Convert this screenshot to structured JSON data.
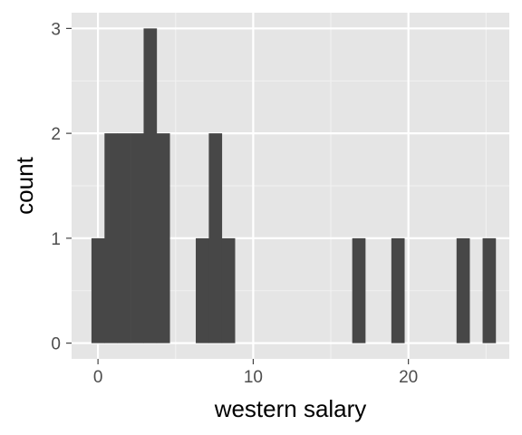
{
  "chart_data": {
    "type": "bar",
    "xlabel": "western salary",
    "ylabel": "count",
    "xlim": [
      -1.7,
      26.5
    ],
    "ylim": [
      -0.15,
      3.15
    ],
    "bin_width": 0.84,
    "x_ticks": [
      0,
      10,
      20
    ],
    "x_tick_labels": [
      "0",
      "10",
      "20"
    ],
    "y_ticks": [
      0,
      1,
      2,
      3
    ],
    "y_tick_labels": [
      "0",
      "1",
      "2",
      "3"
    ],
    "grid": true,
    "bins": [
      {
        "x": 0.0,
        "count": 1
      },
      {
        "x": 0.84,
        "count": 2
      },
      {
        "x": 1.68,
        "count": 2
      },
      {
        "x": 2.52,
        "count": 2
      },
      {
        "x": 3.36,
        "count": 3
      },
      {
        "x": 4.2,
        "count": 2
      },
      {
        "x": 6.72,
        "count": 1
      },
      {
        "x": 7.56,
        "count": 2
      },
      {
        "x": 8.4,
        "count": 1
      },
      {
        "x": 16.8,
        "count": 1
      },
      {
        "x": 19.32,
        "count": 1
      },
      {
        "x": 23.52,
        "count": 1
      },
      {
        "x": 25.2,
        "count": 1
      }
    ],
    "colors": {
      "panel": "#e5e5e5",
      "grid_major": "#ffffff",
      "grid_minor": "#f2f2f2",
      "bar": "#474747",
      "tick": "#333333"
    }
  }
}
